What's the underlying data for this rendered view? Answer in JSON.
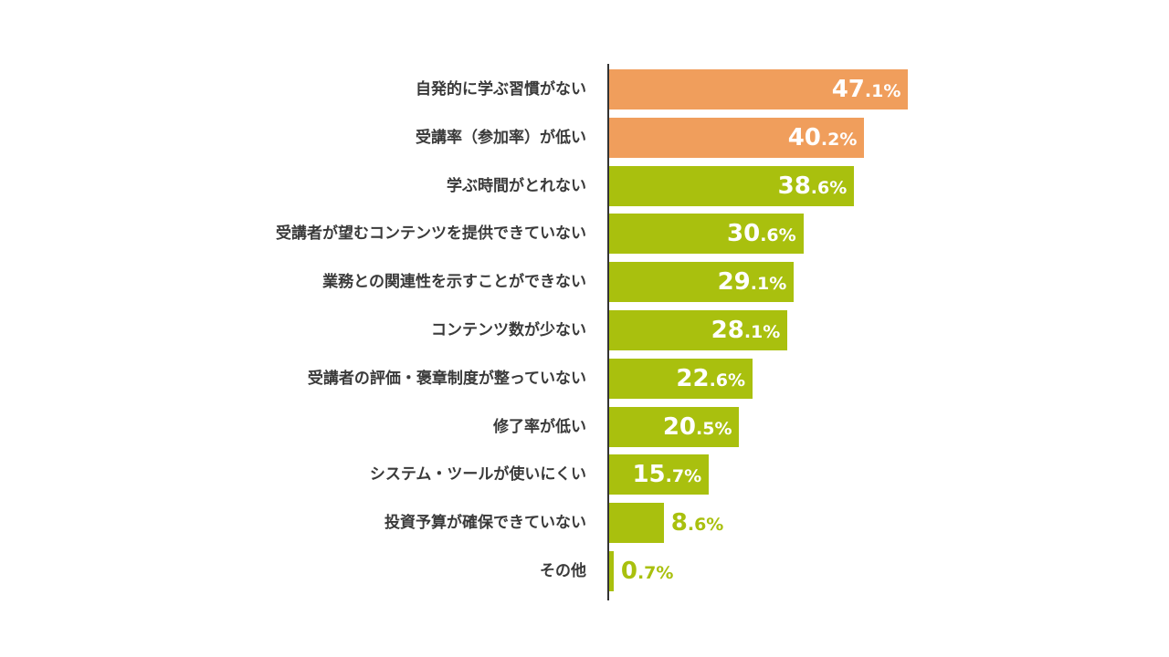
{
  "chart_data": {
    "type": "bar",
    "orientation": "horizontal",
    "title": "",
    "xlabel": "",
    "ylabel": "",
    "unit": "%",
    "xlim": [
      0,
      50
    ],
    "grid": false,
    "legend": "none",
    "categories": [
      "自発的に学ぶ習慣がない",
      "受講率（参加率）が低い",
      "学ぶ時間がとれない",
      "受講者が望むコンテンツを提供できていない",
      "業務との関連性を示すことができない",
      "コンテンツ数が少ない",
      "受講者の評価・褒章制度が整っていない",
      "修了率が低い",
      "システム・ツールが使いにくい",
      "投資予算が確保できていない",
      "その他"
    ],
    "values": [
      47.1,
      40.2,
      38.6,
      30.6,
      29.1,
      28.1,
      22.6,
      20.5,
      15.7,
      8.6,
      0.7
    ],
    "value_labels": [
      "47.1%",
      "40.2%",
      "38.6%",
      "30.6%",
      "29.1%",
      "28.1%",
      "22.6%",
      "20.5%",
      "15.7%",
      "8.6%",
      "0.7%"
    ],
    "colors": {
      "highlight": "#F09E5C",
      "default": "#A9C00E",
      "label_inside": "#FFFFFF",
      "label_outside": "#A9C00E",
      "category_text": "#3A3A3A",
      "axis": "#333333"
    },
    "highlighted_indices": [
      0,
      1
    ]
  }
}
